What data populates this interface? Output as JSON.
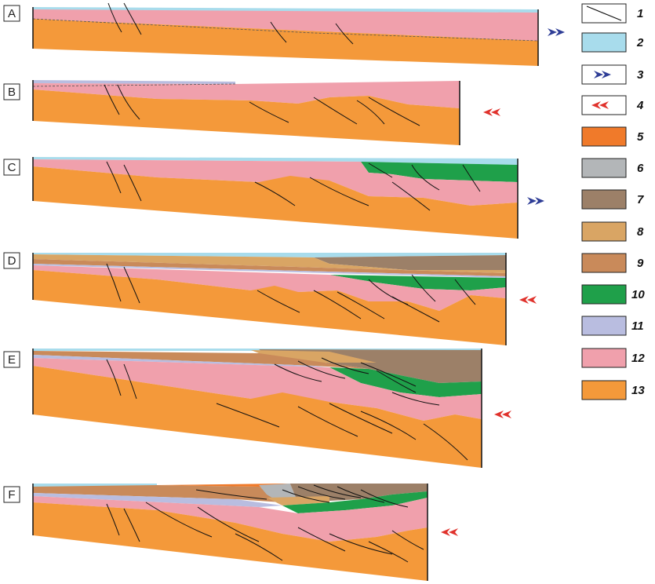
{
  "panels": [
    {
      "label": "A",
      "arrow": "3"
    },
    {
      "label": "B",
      "arrow": "4"
    },
    {
      "label": "C",
      "arrow": "3"
    },
    {
      "label": "D",
      "arrow": "4"
    },
    {
      "label": "E",
      "arrow": "4"
    },
    {
      "label": "F",
      "arrow": "4"
    }
  ],
  "legend": [
    {
      "num": "1",
      "kind": "fault-line-symbol"
    },
    {
      "num": "2",
      "color": "#a8dcec"
    },
    {
      "num": "3",
      "kind": "blue-double-arrow"
    },
    {
      "num": "4",
      "kind": "red-double-arrow"
    },
    {
      "num": "5",
      "color": "#f07a2a"
    },
    {
      "num": "6",
      "color": "#b3b6b8"
    },
    {
      "num": "7",
      "color": "#9c8068"
    },
    {
      "num": "8",
      "color": "#d9a564"
    },
    {
      "num": "9",
      "color": "#c98a5a"
    },
    {
      "num": "10",
      "color": "#1fa04a"
    },
    {
      "num": "11",
      "color": "#b9bde0"
    },
    {
      "num": "12",
      "color": "#f0a0ac"
    },
    {
      "num": "13",
      "color": "#f4993a"
    }
  ],
  "colors": {
    "water": "#a8dcec",
    "pink": "#f0a0ac",
    "orange": "#f4993a",
    "green": "#1fa04a",
    "brown": "#9c8068",
    "tan": "#d9a564",
    "rust": "#c98a5a",
    "grey": "#b3b6b8",
    "lavender": "#b9bde0",
    "blue_arrow": "#2e3d96",
    "red_arrow": "#e0322c"
  }
}
